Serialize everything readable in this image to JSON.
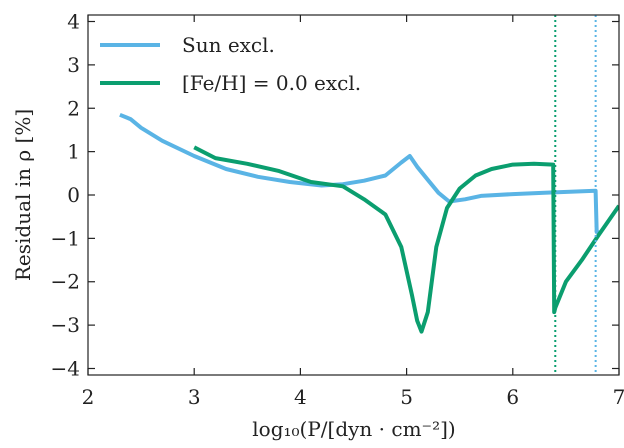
{
  "chart_data": {
    "type": "line",
    "xlabel": "log₁₀(P/[dyn · cm⁻²])",
    "ylabel": "Residual in ρ [%]",
    "xlim": [
      2,
      7
    ],
    "ylim": [
      -4.15,
      4.15
    ],
    "xticks": [
      2,
      3,
      4,
      5,
      6,
      7
    ],
    "yticks": [
      -4,
      -3,
      -2,
      -1,
      0,
      1,
      2,
      3,
      4
    ],
    "ytick_labels": [
      "−4",
      "−3",
      "−2",
      "−1",
      "0",
      "1",
      "2",
      "3",
      "4"
    ],
    "grid": false,
    "legend_position": "top-left",
    "series": [
      {
        "name": "Sun excl.",
        "color": "#5ab4e5",
        "x": [
          2.3,
          2.4,
          2.5,
          2.7,
          3.0,
          3.3,
          3.6,
          3.9,
          4.2,
          4.4,
          4.6,
          4.8,
          4.95,
          5.03,
          5.1,
          5.2,
          5.3,
          5.4,
          5.55,
          5.7,
          6.0,
          6.3,
          6.6,
          6.78,
          6.79,
          6.8
        ],
        "y": [
          1.85,
          1.75,
          1.55,
          1.25,
          0.9,
          0.6,
          0.42,
          0.3,
          0.22,
          0.25,
          0.33,
          0.45,
          0.75,
          0.9,
          0.65,
          0.35,
          0.05,
          -0.15,
          -0.1,
          -0.02,
          0.02,
          0.05,
          0.08,
          0.1,
          -0.85,
          -0.8
        ]
      },
      {
        "name": "[Fe/H] = 0.0 excl.",
        "color": "#0b9e6f",
        "x": [
          3.0,
          3.2,
          3.5,
          3.8,
          4.1,
          4.4,
          4.6,
          4.8,
          4.95,
          5.05,
          5.1,
          5.14,
          5.2,
          5.28,
          5.38,
          5.5,
          5.65,
          5.8,
          6.0,
          6.2,
          6.38,
          6.39,
          6.4,
          6.5,
          6.65,
          6.8,
          7.0
        ],
        "y": [
          1.1,
          0.85,
          0.72,
          0.55,
          0.3,
          0.2,
          -0.1,
          -0.45,
          -1.2,
          -2.3,
          -2.9,
          -3.15,
          -2.7,
          -1.2,
          -0.3,
          0.15,
          0.45,
          0.6,
          0.7,
          0.72,
          0.7,
          -2.7,
          -2.6,
          -2.0,
          -1.5,
          -0.95,
          -0.25
        ]
      }
    ],
    "vlines": [
      {
        "x": 6.4,
        "color": "#0b9e6f"
      },
      {
        "x": 6.78,
        "color": "#5ab4e5"
      }
    ]
  }
}
